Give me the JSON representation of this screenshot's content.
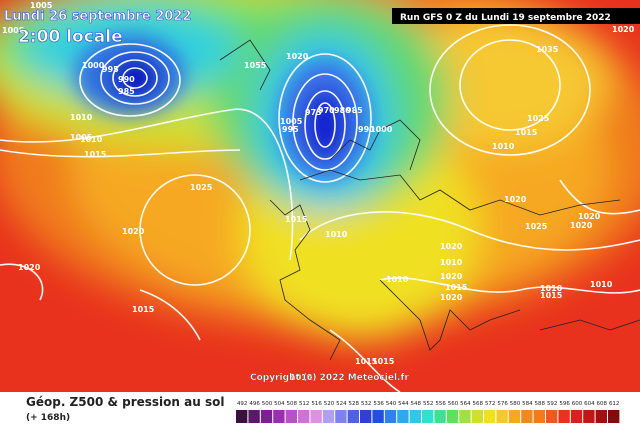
{
  "header": {
    "date": "Lundi 26 septembre 2022",
    "time": "2:00 locale",
    "run": "Run GFS 0 Z du Lundi 19 septembre 2022"
  },
  "copyright": "Copyright (c) 2022 Meteociel.fr",
  "legend": {
    "title": "Géop. Z500 & pression au sol",
    "subtitle": "(+ 168h)",
    "scale": [
      492,
      496,
      500,
      504,
      508,
      512,
      516,
      520,
      524,
      528,
      532,
      536,
      540,
      544,
      548,
      552,
      556,
      560,
      564,
      568,
      572,
      576,
      580,
      584,
      588,
      592,
      596,
      600,
      604,
      608,
      612
    ]
  },
  "isobar_labels": [
    "1005",
    "1005",
    "1000",
    "995",
    "990",
    "985",
    "1010",
    "1005",
    "1010",
    "1015",
    "1055",
    "1020",
    "975",
    "970",
    "980",
    "985",
    "990",
    "1005",
    "995",
    "1000",
    "1025",
    "1020",
    "1020",
    "1015",
    "1015",
    "1010",
    "1035",
    "1025",
    "1015",
    "1010",
    "1020",
    "1020",
    "1020",
    "1025",
    "1020",
    "1010",
    "1020",
    "1015",
    "1010",
    "1020",
    "1010",
    "1015",
    "1015",
    "1010",
    "1010",
    "1015",
    "1020"
  ]
}
